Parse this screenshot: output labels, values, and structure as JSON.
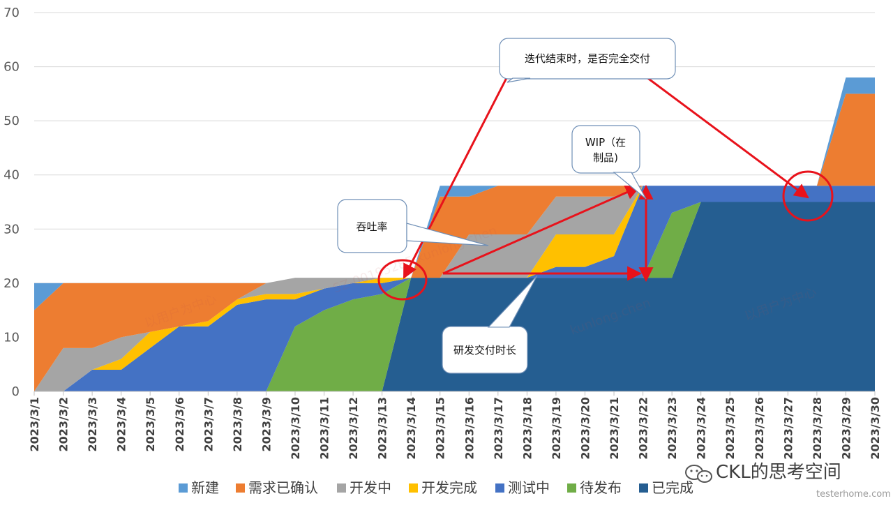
{
  "chart_data": {
    "type": "area",
    "stacked": true,
    "title": "",
    "xlabel": "",
    "ylabel": "",
    "ylim": [
      0,
      70
    ],
    "yticks": [
      0,
      10,
      20,
      30,
      40,
      50,
      60,
      70
    ],
    "grid": true,
    "legend_position": "bottom",
    "categories": [
      "2023/3/1",
      "2023/3/2",
      "2023/3/3",
      "2023/3/4",
      "2023/3/5",
      "2023/3/6",
      "2023/3/7",
      "2023/3/8",
      "2023/3/9",
      "2023/3/10",
      "2023/3/11",
      "2023/3/12",
      "2023/3/13",
      "2023/3/14",
      "2023/3/15",
      "2023/3/16",
      "2023/3/17",
      "2023/3/18",
      "2023/3/19",
      "2023/3/20",
      "2023/3/21",
      "2023/3/22",
      "2023/3/23",
      "2023/3/24",
      "2023/3/25",
      "2023/3/26",
      "2023/3/27",
      "2023/3/28",
      "2023/3/29",
      "2023/3/30"
    ],
    "series": [
      {
        "name": "已完成",
        "color": "#255e91",
        "values": [
          0,
          0,
          0,
          0,
          0,
          0,
          0,
          0,
          0,
          0,
          0,
          0,
          0,
          21,
          21,
          21,
          21,
          21,
          21,
          21,
          21,
          21,
          21,
          35,
          35,
          35,
          35,
          35,
          35,
          35
        ]
      },
      {
        "name": "待发布",
        "color": "#70ad47",
        "values": [
          0,
          0,
          0,
          0,
          0,
          0,
          0,
          0,
          0,
          12,
          15,
          17,
          18,
          0,
          0,
          0,
          0,
          0,
          0,
          0,
          0,
          0,
          12,
          0,
          0,
          0,
          0,
          0,
          0,
          0
        ]
      },
      {
        "name": "测试中",
        "color": "#4472c4",
        "values": [
          0,
          0,
          4,
          4,
          8,
          12,
          12,
          16,
          17,
          5,
          4,
          3,
          2,
          0,
          0,
          0,
          0,
          0,
          2,
          2,
          4,
          17,
          5,
          3,
          3,
          3,
          3,
          3,
          3,
          3
        ]
      },
      {
        "name": "开发完成",
        "color": "#ffc000",
        "values": [
          0,
          0,
          0,
          2,
          3,
          0,
          1,
          1,
          1,
          1,
          0,
          0,
          1,
          0,
          0,
          0,
          0,
          0,
          6,
          6,
          4,
          0,
          0,
          0,
          0,
          0,
          0,
          0,
          0,
          0
        ]
      },
      {
        "name": "开发中",
        "color": "#a5a5a5",
        "values": [
          0,
          8,
          4,
          4,
          0,
          0,
          0,
          0,
          2,
          3,
          2,
          1,
          0,
          0,
          0,
          8,
          8,
          8,
          7,
          7,
          7,
          0,
          0,
          0,
          0,
          0,
          0,
          0,
          0,
          0
        ]
      },
      {
        "name": "需求已确认",
        "color": "#ed7d31",
        "values": [
          15,
          12,
          12,
          10,
          9,
          8,
          7,
          3,
          0,
          0,
          0,
          0,
          0,
          0,
          15,
          7,
          9,
          9,
          2,
          2,
          2,
          0,
          0,
          0,
          0,
          0,
          0,
          0,
          17,
          17
        ]
      },
      {
        "name": "新建",
        "color": "#5b9bd5",
        "values": [
          5,
          0,
          0,
          0,
          0,
          0,
          0,
          0,
          0,
          0,
          0,
          0,
          0,
          0,
          2,
          2,
          0,
          0,
          0,
          0,
          0,
          0,
          0,
          0,
          0,
          0,
          0,
          0,
          3,
          3
        ]
      }
    ],
    "legend_order": [
      "新建",
      "需求已确认",
      "开发中",
      "开发完成",
      "测试中",
      "待发布",
      "已完成"
    ],
    "annotations": [
      {
        "id": "iteration",
        "text": "迭代结束时，是否完全交付"
      },
      {
        "id": "wip",
        "text_lines": [
          "WIP（在",
          "制品)"
        ]
      },
      {
        "id": "throughput",
        "text": "吞吐率"
      },
      {
        "id": "leadtime",
        "text": "研发交付时长"
      }
    ]
  },
  "footer": {
    "brand": "CKL的思考空间",
    "site": "testerhome.com"
  },
  "watermarks": [
    "以用户为中心",
    "SZ-00195285 kunlong.chen",
    "kunlong.chen"
  ]
}
